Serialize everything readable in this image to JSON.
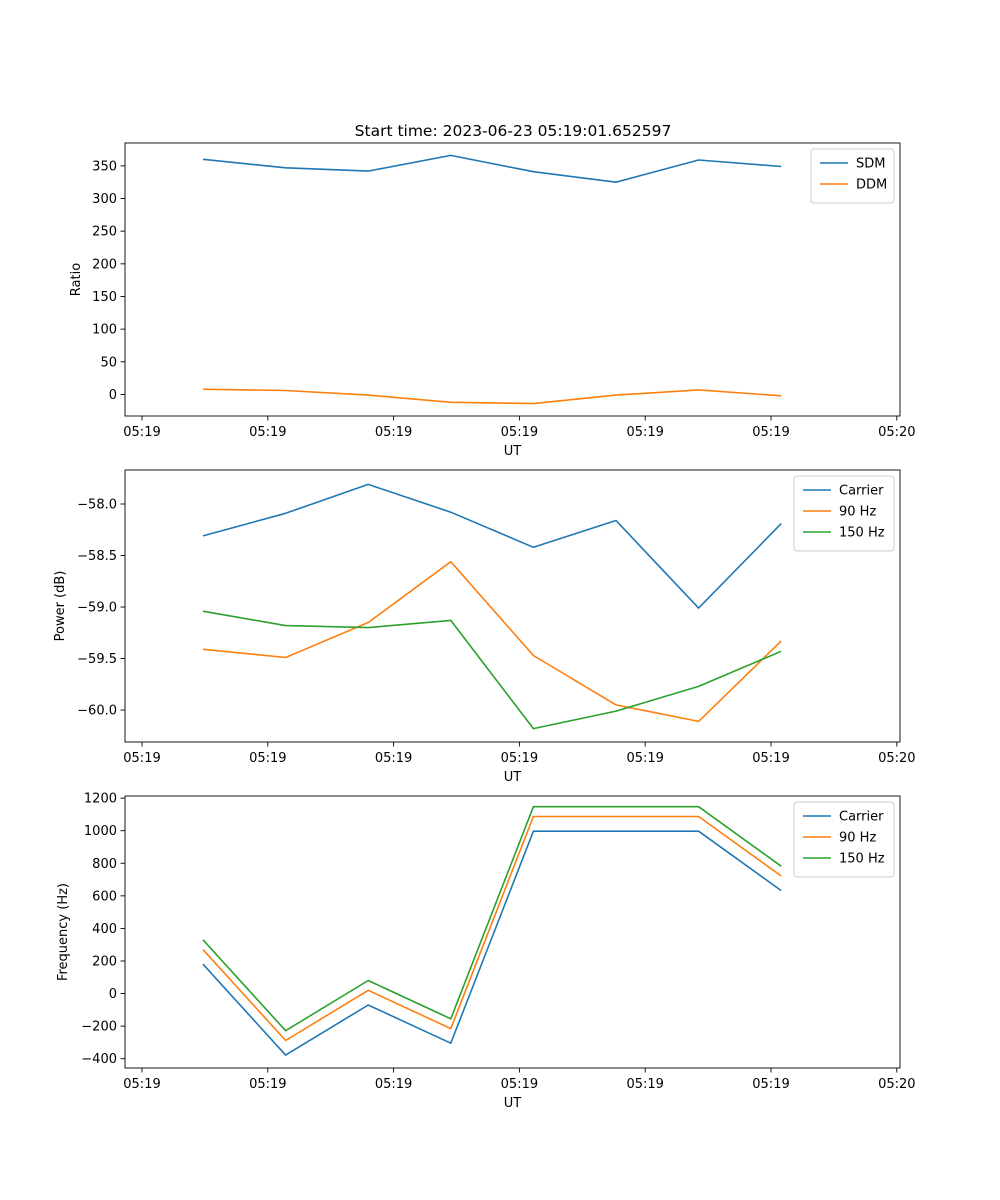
{
  "figure": {
    "title": "Start time: 2023-06-23 05:19:01.652597"
  },
  "chart_data": [
    {
      "type": "line",
      "xlabel": "UT",
      "ylabel": "Ratio",
      "x_tick_labels": [
        "05:19",
        "05:19",
        "05:19",
        "05:19",
        "05:19",
        "05:19",
        "05:20"
      ],
      "y_ticks": [
        0,
        50,
        100,
        150,
        200,
        250,
        300,
        350
      ],
      "ylim": [
        -33,
        385
      ],
      "legend": "top-right",
      "series": [
        {
          "name": "SDM",
          "color": "#1f77b4",
          "values": [
            360,
            347,
            342,
            366,
            341,
            325,
            359,
            349
          ]
        },
        {
          "name": "DDM",
          "color": "#ff7f0e",
          "values": [
            8,
            6,
            -1,
            -12,
            -14,
            -1,
            7,
            -2
          ]
        }
      ]
    },
    {
      "type": "line",
      "xlabel": "UT",
      "ylabel": "Power (dB)",
      "x_tick_labels": [
        "05:19",
        "05:19",
        "05:19",
        "05:19",
        "05:19",
        "05:19",
        "05:20"
      ],
      "y_ticks": [
        -60.0,
        -59.5,
        -59.0,
        -58.5,
        -58.0
      ],
      "y_tick_labels": [
        "−60.0",
        "−59.5",
        "−59.0",
        "−58.5",
        "−58.0"
      ],
      "ylim": [
        -60.31,
        -57.67
      ],
      "legend": "top-right",
      "series": [
        {
          "name": "Carrier",
          "color": "#1f77b4",
          "values": [
            -58.31,
            -58.09,
            -57.81,
            -58.08,
            -58.42,
            -58.16,
            -59.01,
            -58.19
          ]
        },
        {
          "name": "90 Hz",
          "color": "#ff7f0e",
          "values": [
            -59.41,
            -59.49,
            -59.15,
            -58.56,
            -59.47,
            -59.95,
            -60.11,
            -59.33
          ]
        },
        {
          "name": "150 Hz",
          "color": "#2ca02c",
          "values": [
            -59.04,
            -59.18,
            -59.2,
            -59.13,
            -60.18,
            -60.01,
            -59.77,
            -59.43
          ]
        }
      ]
    },
    {
      "type": "line",
      "xlabel": "UT",
      "ylabel": "Frequency (Hz)",
      "x_tick_labels": [
        "05:19",
        "05:19",
        "05:19",
        "05:19",
        "05:19",
        "05:19",
        "05:20"
      ],
      "y_ticks": [
        -400,
        -200,
        0,
        200,
        400,
        600,
        800,
        1000,
        1200
      ],
      "y_tick_labels": [
        "−400",
        "−200",
        "0",
        "200",
        "400",
        "600",
        "800",
        "1000",
        "1200"
      ],
      "ylim": [
        -457,
        1213
      ],
      "legend": "top-right",
      "series": [
        {
          "name": "Carrier",
          "color": "#1f77b4",
          "values": [
            180,
            -378,
            -70,
            -305,
            997,
            997,
            997,
            632
          ]
        },
        {
          "name": "90 Hz",
          "color": "#ff7f0e",
          "values": [
            270,
            -288,
            20,
            -215,
            1087,
            1087,
            1087,
            722
          ]
        },
        {
          "name": "150 Hz",
          "color": "#2ca02c",
          "values": [
            330,
            -228,
            80,
            -155,
            1147,
            1147,
            1147,
            782
          ]
        }
      ]
    }
  ]
}
